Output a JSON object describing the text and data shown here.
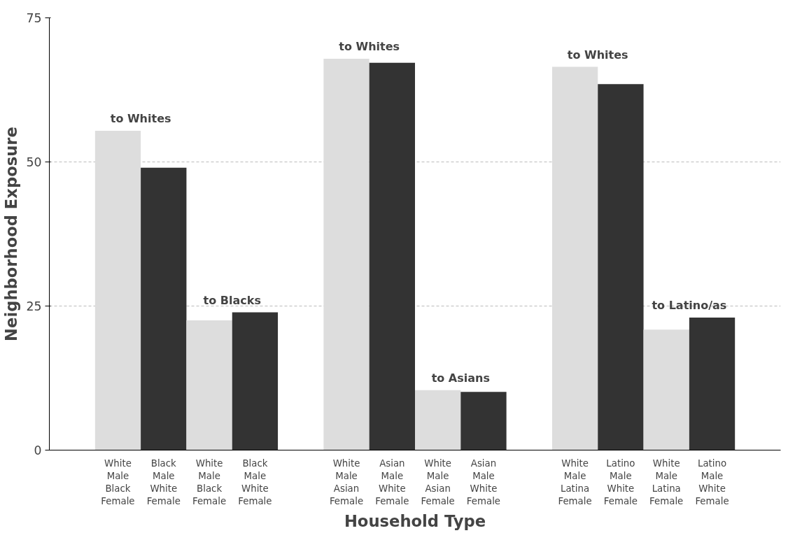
{
  "chart_data": {
    "type": "bar",
    "xlabel": "Household Type",
    "ylabel": "Neighborhood Exposure",
    "categories": [
      null,
      "White\nMale\nBlack\nFemale",
      "Black\nMale\nWhite\nFemale",
      "White\nMale\nBlack\nFemale",
      "Black\nMale\nWhite\nFemale",
      null,
      "White\nMale\nAsian\nFemale",
      "Asian\nMale\nWhite\nFemale",
      "White\nMale\nAsian\nFemale",
      "Asian\nMale\nWhite\nFemale",
      null,
      "White\nMale\nLatina\nFemale",
      "Latino\nMale\nWhite\nFemale",
      "White\nMale\nLatina\nFemale",
      "Latino\nMale\nWhite\nFemale",
      null
    ],
    "values": [
      null,
      55.4,
      49.0,
      22.5,
      23.9,
      null,
      67.9,
      67.2,
      10.4,
      10.1,
      null,
      66.5,
      63.5,
      20.9,
      23.0,
      null
    ],
    "colors": [
      null,
      "#dddddd",
      "#333333",
      "#dddddd",
      "#333333",
      null,
      "#dddddd",
      "#333333",
      "#dddddd",
      "#333333",
      null,
      "#dddddd",
      "#333333",
      "#dddddd",
      "#333333",
      null
    ],
    "annotations": [
      "to Whites",
      "to Blacks",
      "to Whites",
      "to Asians",
      "to Whites",
      "to Latino/as"
    ],
    "ylim": [
      0,
      75
    ],
    "yticks": [
      0,
      25,
      50,
      75
    ],
    "grid": "y"
  }
}
